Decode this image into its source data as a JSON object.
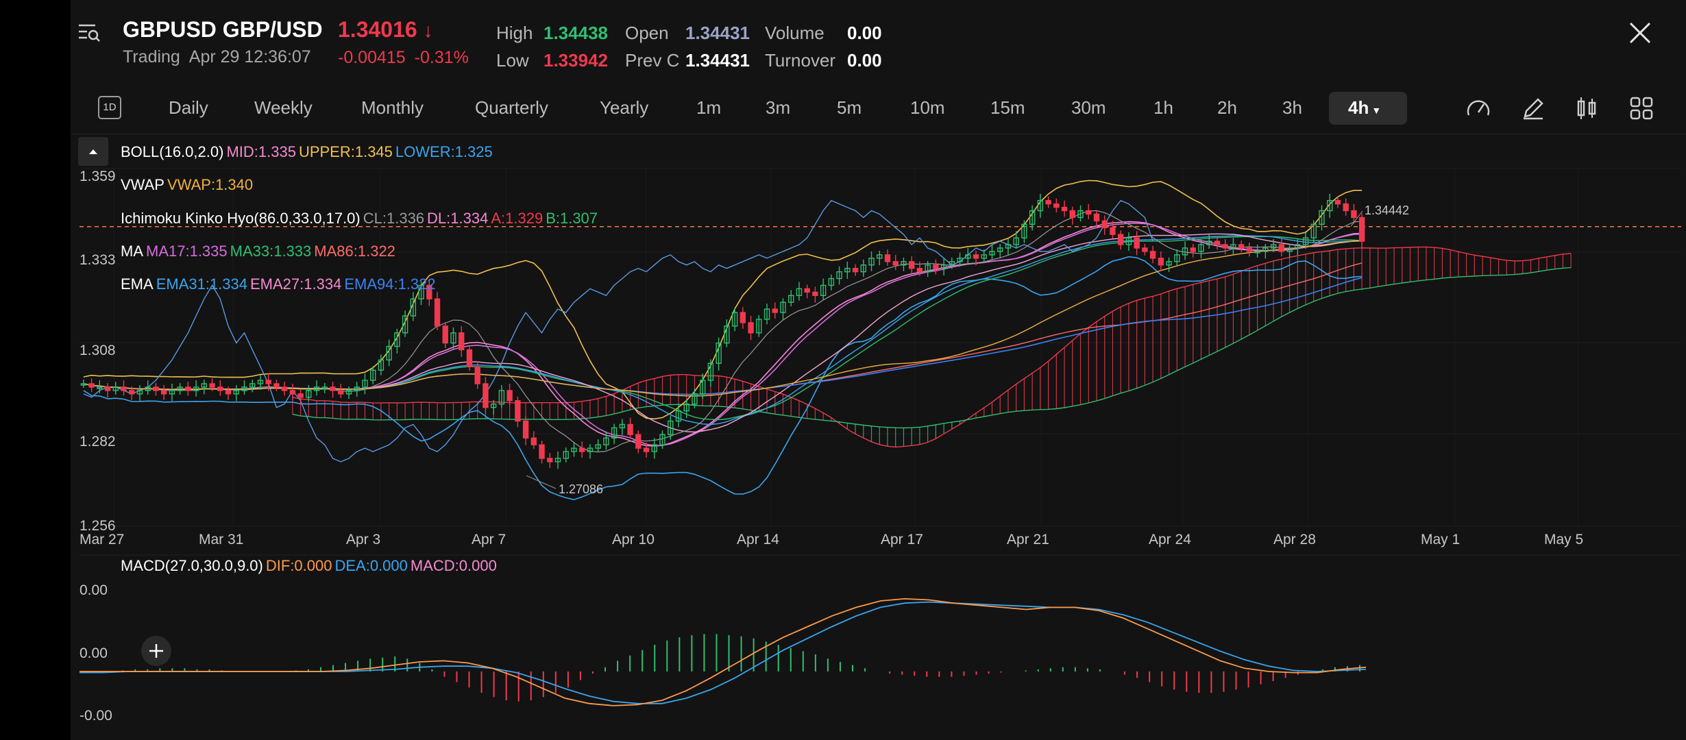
{
  "header": {
    "symbol": "GBPUSD",
    "name": "GBP/USD",
    "price": "1.34016",
    "status": "Trading",
    "datetime": "Apr 29 12:36:07",
    "change": "-0.00415",
    "change_pct": "-0.31%",
    "stats": {
      "high_label": "High",
      "high": "1.34438",
      "low_label": "Low",
      "low": "1.33942",
      "open_label": "Open",
      "open": "1.34431",
      "prevc_label": "Prev C",
      "prevc": "1.34431",
      "volume_label": "Volume",
      "volume": "0.00",
      "turnover_label": "Turnover",
      "turnover": "0.00"
    }
  },
  "intervals": {
    "period_icon": "1D",
    "tabs": [
      "Daily",
      "Weekly",
      "Monthly",
      "Quarterly",
      "Yearly",
      "1m",
      "3m",
      "5m",
      "10m",
      "15m",
      "30m",
      "1h",
      "2h",
      "3h",
      "4h"
    ],
    "active": "4h"
  },
  "toolbar_icons": [
    "speedometer-icon",
    "pencil-icon",
    "candle-type-icon",
    "grid-icon"
  ],
  "legends": {
    "boll": {
      "name": "BOLL(16.0,2.0)",
      "mid": "MID:1.335",
      "upper": "UPPER:1.345",
      "lower": "LOWER:1.325"
    },
    "vwap": {
      "name": "VWAP",
      "vwap": "VWAP:1.340"
    },
    "ichimoku": {
      "name": "Ichimoku Kinko Hyo(86.0,33.0,17.0)",
      "cl": "CL:1.336",
      "dl": "DL:1.334",
      "a": "A:1.329",
      "b": "B:1.307"
    },
    "ma": {
      "name": "MA",
      "ma17": "MA17:1.335",
      "ma33": "MA33:1.333",
      "ma86": "MA86:1.322"
    },
    "ema": {
      "name": "EMA",
      "ema31": "EMA31:1.334",
      "ema27": "EMA27:1.334",
      "ema94": "EMA94:1.322"
    },
    "macd": {
      "name": "MACD(27.0,30.0,9.0)",
      "dif": "DIF:0.000",
      "dea": "DEA:0.000",
      "macd": "MACD:0.000"
    }
  },
  "colors": {
    "up": "#2fbf71",
    "down": "#f0394e",
    "yellow": "#f2c14e",
    "pink": "#f58bd0",
    "magenta": "#d66ce0",
    "blue": "#3aa5f0",
    "deepblue": "#3b82f6",
    "grey": "#9a9a9a",
    "orange": "#ff9a4a",
    "vwap": "#f2b23e",
    "prevclose": "#ff7a33",
    "accent": "#e8e8e8"
  },
  "chart_data": [
    {
      "type": "candlestick",
      "title": "GBPUSD GBP/USD 4h",
      "y_ticks": [
        "1.359",
        "1.333",
        "1.308",
        "1.282",
        "1.256"
      ],
      "ylim": [
        1.256,
        1.359
      ],
      "x_ticks": [
        "Mar 27",
        "Mar 31",
        "Apr 3",
        "Apr 7",
        "Apr 10",
        "Apr 14",
        "Apr 17",
        "Apr 21",
        "Apr 24",
        "Apr 28",
        "May 1",
        "May 5"
      ],
      "annotations": {
        "high": "1.34442",
        "low": "1.27086"
      },
      "prev_close_line": 1.34431,
      "close_path": [
        1.298,
        1.297,
        1.297,
        1.296,
        1.297,
        1.296,
        1.295,
        1.296,
        1.297,
        1.296,
        1.295,
        1.296,
        1.297,
        1.296,
        1.297,
        1.298,
        1.297,
        1.296,
        1.295,
        1.296,
        1.297,
        1.298,
        1.299,
        1.298,
        1.297,
        1.296,
        1.295,
        1.294,
        1.296,
        1.297,
        1.297,
        1.296,
        1.295,
        1.296,
        1.297,
        1.299,
        1.302,
        1.305,
        1.309,
        1.313,
        1.318,
        1.323,
        1.327,
        1.323,
        1.315,
        1.31,
        1.313,
        1.308,
        1.303,
        1.298,
        1.291,
        1.292,
        1.296,
        1.293,
        1.287,
        1.282,
        1.28,
        1.276,
        1.275,
        1.276,
        1.278,
        1.279,
        1.278,
        1.279,
        1.28,
        1.282,
        1.285,
        1.286,
        1.283,
        1.279,
        1.278,
        1.28,
        1.283,
        1.287,
        1.29,
        1.292,
        1.295,
        1.299,
        1.304,
        1.31,
        1.315,
        1.319,
        1.316,
        1.313,
        1.317,
        1.32,
        1.319,
        1.322,
        1.324,
        1.326,
        1.325,
        1.324,
        1.327,
        1.329,
        1.331,
        1.332,
        1.331,
        1.333,
        1.335,
        1.336,
        1.334,
        1.333,
        1.334,
        1.332,
        1.331,
        1.333,
        1.332,
        1.333,
        1.334,
        1.335,
        1.336,
        1.335,
        1.336,
        1.337,
        1.338,
        1.339,
        1.341,
        1.345,
        1.349,
        1.352,
        1.351,
        1.35,
        1.349,
        1.347,
        1.349,
        1.348,
        1.346,
        1.344,
        1.342,
        1.339,
        1.341,
        1.338,
        1.337,
        1.335,
        1.333,
        1.334,
        1.336,
        1.338,
        1.337,
        1.339,
        1.34,
        1.339,
        1.338,
        1.339,
        1.338,
        1.337,
        1.337,
        1.338,
        1.339,
        1.337,
        1.338,
        1.339,
        1.341,
        1.345,
        1.349,
        1.352,
        1.351,
        1.349,
        1.347,
        1.34
      ]
    },
    {
      "type": "macd",
      "y_ticks": [
        "0.00",
        "0.00",
        "-0.00"
      ],
      "histogram": [
        0,
        0,
        0,
        0.01,
        0.02,
        0.02,
        0.03,
        0.03,
        0.03,
        0.02,
        0.02,
        0.01,
        0,
        0,
        0,
        0,
        0,
        0.01,
        0.02,
        0.04,
        0.06,
        0.08,
        0.1,
        0.12,
        0.13,
        0.14,
        0.12,
        0.08,
        0.02,
        -0.05,
        -0.1,
        -0.15,
        -0.2,
        -0.24,
        -0.27,
        -0.28,
        -0.27,
        -0.24,
        -0.2,
        -0.15,
        -0.08,
        -0.02,
        0.04,
        0.1,
        0.15,
        0.2,
        0.25,
        0.29,
        0.32,
        0.34,
        0.35,
        0.35,
        0.34,
        0.33,
        0.31,
        0.28,
        0.25,
        0.22,
        0.19,
        0.16,
        0.12,
        0.09,
        0.06,
        0.03,
        0,
        -0.02,
        -0.03,
        -0.04,
        -0.05,
        -0.05,
        -0.05,
        -0.04,
        -0.03,
        -0.02,
        -0.01,
        0,
        0.01,
        0.02,
        0.03,
        0.04,
        0.04,
        0.03,
        0.02,
        0,
        -0.03,
        -0.06,
        -0.1,
        -0.14,
        -0.17,
        -0.19,
        -0.2,
        -0.2,
        -0.19,
        -0.17,
        -0.15,
        -0.12,
        -0.09,
        -0.06,
        -0.03,
        0,
        0.02,
        0.04,
        0.05,
        0.06
      ],
      "dif": [
        0,
        0,
        0,
        0,
        0,
        0,
        0,
        0,
        0,
        0,
        0,
        0.01,
        0.03,
        0.06,
        0.09,
        0.1,
        0.08,
        0.03,
        -0.05,
        -0.15,
        -0.25,
        -0.3,
        -0.32,
        -0.31,
        -0.27,
        -0.18,
        -0.06,
        0.07,
        0.2,
        0.32,
        0.42,
        0.52,
        0.6,
        0.66,
        0.68,
        0.67,
        0.64,
        0.62,
        0.6,
        0.58,
        0.6,
        0.6,
        0.57,
        0.5,
        0.4,
        0.3,
        0.2,
        0.1,
        0.03,
        0,
        -0.01,
        -0.01,
        0.02,
        0.04
      ],
      "dea": [
        -0.01,
        -0.01,
        0,
        0,
        0,
        0,
        0,
        0,
        0,
        0,
        0,
        0,
        0.01,
        0.02,
        0.04,
        0.05,
        0.05,
        0.03,
        -0.01,
        -0.08,
        -0.16,
        -0.23,
        -0.28,
        -0.3,
        -0.3,
        -0.25,
        -0.17,
        -0.06,
        0.07,
        0.2,
        0.31,
        0.42,
        0.52,
        0.6,
        0.64,
        0.65,
        0.64,
        0.63,
        0.62,
        0.61,
        0.6,
        0.6,
        0.58,
        0.53,
        0.46,
        0.37,
        0.28,
        0.19,
        0.11,
        0.05,
        0.01,
        0,
        0.01,
        0.02
      ]
    }
  ]
}
